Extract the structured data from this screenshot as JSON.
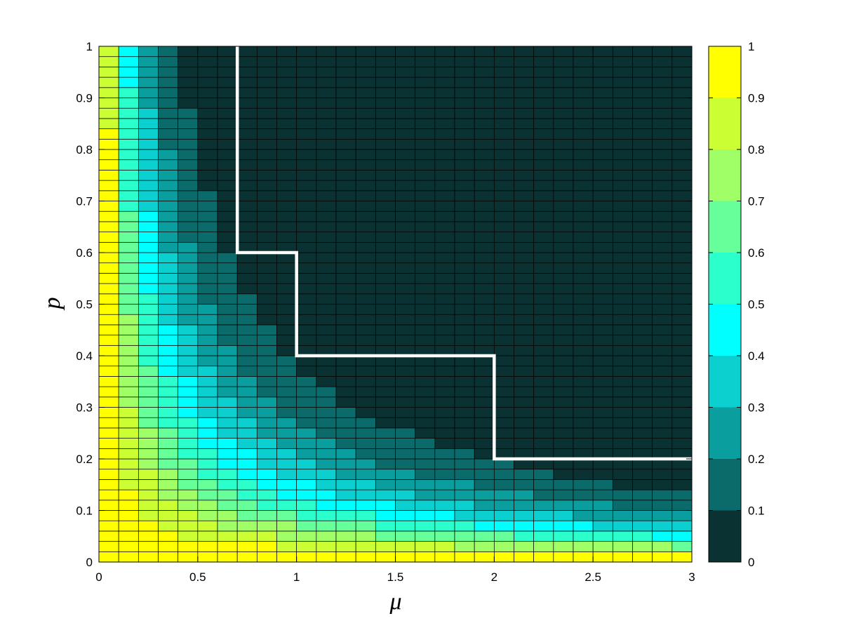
{
  "chart_data": {
    "type": "heatmap",
    "title": "",
    "xlabel": "μ",
    "ylabel": "p",
    "xlim": [
      0,
      3
    ],
    "ylim": [
      0,
      1
    ],
    "x_ticks": [
      0,
      0.5,
      1,
      1.5,
      2,
      2.5,
      3
    ],
    "x_tick_labels": [
      "0",
      "0.5",
      "1",
      "1.5",
      "2",
      "2.5",
      "3"
    ],
    "y_ticks": [
      0,
      0.1,
      0.2,
      0.3,
      0.4,
      0.5,
      0.6,
      0.7,
      0.8,
      0.9,
      1
    ],
    "y_tick_labels": [
      "0",
      "0.1",
      "0.2",
      "0.3",
      "0.4",
      "0.5",
      "0.6",
      "0.7",
      "0.8",
      "0.9",
      "1"
    ],
    "grid": "cell edges drawn in black",
    "mu_values": [
      0,
      0.1,
      0.2,
      0.3,
      0.4,
      0.5,
      0.6,
      0.7,
      0.8,
      0.9,
      1.0,
      1.1,
      1.2,
      1.3,
      1.4,
      1.5,
      1.6,
      1.7,
      1.8,
      1.9,
      2.0,
      2.1,
      2.2,
      2.3,
      2.4,
      2.5,
      2.6,
      2.7,
      2.8,
      2.9
    ],
    "p_values": [
      0,
      0.02,
      0.04,
      0.06,
      0.08,
      0.1,
      0.12,
      0.14,
      0.16,
      0.18,
      0.2,
      0.22,
      0.24,
      0.26,
      0.28,
      0.3,
      0.32,
      0.34,
      0.36,
      0.38,
      0.4,
      0.42,
      0.44,
      0.46,
      0.48,
      0.5,
      0.52,
      0.54,
      0.56,
      0.58,
      0.6,
      0.62,
      0.64,
      0.66,
      0.68,
      0.7,
      0.72,
      0.74,
      0.76,
      0.78,
      0.8,
      0.82,
      0.84,
      0.86,
      0.88,
      0.9,
      0.92,
      0.94,
      0.96,
      0.98
    ],
    "cell_width": 0.1,
    "cell_height": 0.02,
    "value_model": "v ≈ exp(-(mu+0.02)·p·k), k≈6.3, values <0.05 shown as 0 (dark region)",
    "boundary_line": {
      "color": "#ffffff",
      "mu": [
        0.7,
        0.7,
        1,
        1,
        2,
        2,
        3
      ],
      "p": [
        1,
        0.6,
        0.6,
        0.4,
        0.4,
        0.2,
        0.2
      ]
    },
    "colorbar": {
      "min": 0,
      "max": 1,
      "levels": 10,
      "tick_labels": [
        "0",
        "0.1",
        "0.2",
        "0.3",
        "0.4",
        "0.5",
        "0.6",
        "0.7",
        "0.8",
        "0.9",
        "1"
      ],
      "colors": [
        "#0a3232",
        "#0b6b6b",
        "#0a9e9e",
        "#0ccfcf",
        "#00ffff",
        "#2bffcc",
        "#66ff99",
        "#a0ff66",
        "#ccff33",
        "#ffff00"
      ]
    }
  }
}
